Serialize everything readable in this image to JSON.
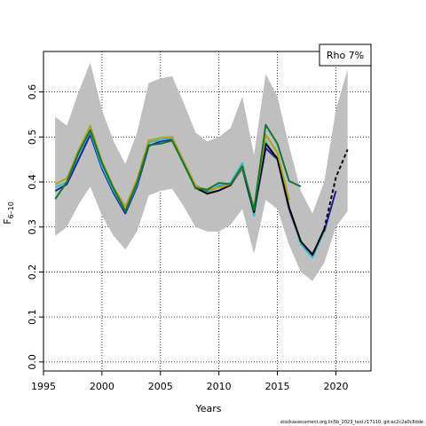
{
  "chart_data": {
    "type": "line",
    "title": "",
    "xlabel": "Years",
    "ylabel": "F",
    "ylabel_sub": "6–10",
    "xlim": [
      1995,
      2023
    ],
    "ylim": [
      -0.02,
      0.69
    ],
    "x_ticks": [
      1995,
      2000,
      2005,
      2010,
      2015,
      2020
    ],
    "y_ticks": [
      0.0,
      0.1,
      0.2,
      0.3,
      0.4,
      0.5,
      0.6
    ],
    "y_tick_labels": [
      "0.0",
      "0.1",
      "0.2",
      "0.3",
      "0.4",
      "0.5",
      "0.6"
    ],
    "grid": true,
    "legend": {
      "text": "Rho 7%",
      "position": "top-right"
    },
    "footer": "stockassessment.org,lin5b_2023_test,r17110, git:ec2c2a0c8dde",
    "band": {
      "x": [
        1996,
        1997,
        1998,
        1999,
        2000,
        2001,
        2002,
        2003,
        2004,
        2005,
        2006,
        2007,
        2008,
        2009,
        2010,
        2011,
        2012,
        2013,
        2014,
        2015,
        2016,
        2017,
        2018,
        2019,
        2020,
        2021
      ],
      "upper": [
        0.545,
        0.525,
        0.6,
        0.665,
        0.56,
        0.49,
        0.44,
        0.51,
        0.62,
        0.63,
        0.635,
        0.575,
        0.51,
        0.49,
        0.5,
        0.52,
        0.59,
        0.46,
        0.64,
        0.59,
        0.48,
        0.38,
        0.33,
        0.4,
        0.56,
        0.65
      ],
      "lower": [
        0.28,
        0.3,
        0.35,
        0.39,
        0.325,
        0.28,
        0.25,
        0.29,
        0.37,
        0.38,
        0.385,
        0.345,
        0.3,
        0.29,
        0.29,
        0.305,
        0.34,
        0.24,
        0.36,
        0.34,
        0.26,
        0.2,
        0.18,
        0.22,
        0.3,
        0.335
      ]
    },
    "series": [
      {
        "color": "#2020a0",
        "dashed": false,
        "x": [
          1996,
          1997,
          1998,
          1999,
          2000,
          2001,
          2002,
          2003,
          2004,
          2005,
          2006,
          2007,
          2008,
          2009,
          2010,
          2011,
          2012,
          2013,
          2014,
          2015,
          2016,
          2017,
          2018,
          2019,
          2020
        ],
        "values": [
          0.38,
          0.395,
          0.45,
          0.505,
          0.43,
          0.375,
          0.33,
          0.39,
          0.48,
          0.49,
          0.495,
          0.44,
          0.39,
          0.378,
          0.39,
          0.395,
          0.43,
          0.33,
          0.475,
          0.45,
          0.34,
          0.265,
          0.24,
          0.29,
          0.38
        ]
      },
      {
        "color": "#33bbcc",
        "dashed": false,
        "x": [
          1996,
          1997,
          1998,
          1999,
          2000,
          2001,
          2002,
          2003,
          2004,
          2005,
          2006,
          2007,
          2008,
          2009,
          2010,
          2011,
          2012,
          2013,
          2014,
          2015,
          2016,
          2017,
          2018,
          2019
        ],
        "values": [
          0.388,
          0.4,
          0.462,
          0.512,
          0.435,
          0.38,
          0.335,
          0.395,
          0.488,
          0.493,
          0.498,
          0.438,
          0.388,
          0.376,
          0.393,
          0.398,
          0.442,
          0.325,
          0.49,
          0.45,
          0.345,
          0.262,
          0.232,
          0.29
        ]
      },
      {
        "color": "#000000",
        "dashed": false,
        "x": [
          2008,
          2009,
          2010,
          2011,
          2012,
          2013,
          2014,
          2015,
          2016,
          2017,
          2018,
          2019
        ],
        "values": [
          0.387,
          0.374,
          0.381,
          0.393,
          0.432,
          0.333,
          0.485,
          0.452,
          0.343,
          0.268,
          0.238,
          0.295
        ]
      },
      {
        "color": "#000000",
        "dashed": true,
        "x": [
          2019,
          2020,
          2021
        ],
        "values": [
          0.295,
          0.41,
          0.472
        ]
      },
      {
        "color": "#b0a020",
        "dashed": false,
        "x": [
          1996,
          1997,
          1998,
          1999,
          2000,
          2001,
          2002,
          2003,
          2004,
          2005,
          2006,
          2007,
          2008,
          2009,
          2010,
          2011,
          2012,
          2013,
          2014,
          2015,
          2016
        ],
        "values": [
          0.395,
          0.408,
          0.47,
          0.525,
          0.445,
          0.388,
          0.345,
          0.405,
          0.492,
          0.498,
          0.5,
          0.445,
          0.392,
          0.382,
          0.388,
          0.395,
          0.432,
          0.342,
          0.505,
          0.465,
          0.36
        ]
      },
      {
        "color": "#117733",
        "dashed": false,
        "x": [
          1996,
          1997,
          1998,
          1999,
          2000,
          2001,
          2002,
          2003,
          2004,
          2005,
          2006,
          2007,
          2008,
          2009,
          2010,
          2011,
          2012,
          2013,
          2014,
          2015,
          2016,
          2017
        ],
        "values": [
          0.362,
          0.4,
          0.465,
          0.515,
          0.442,
          0.385,
          0.335,
          0.398,
          0.482,
          0.485,
          0.492,
          0.44,
          0.386,
          0.383,
          0.398,
          0.395,
          0.435,
          0.338,
          0.527,
          0.485,
          0.402,
          0.39
        ]
      }
    ]
  }
}
